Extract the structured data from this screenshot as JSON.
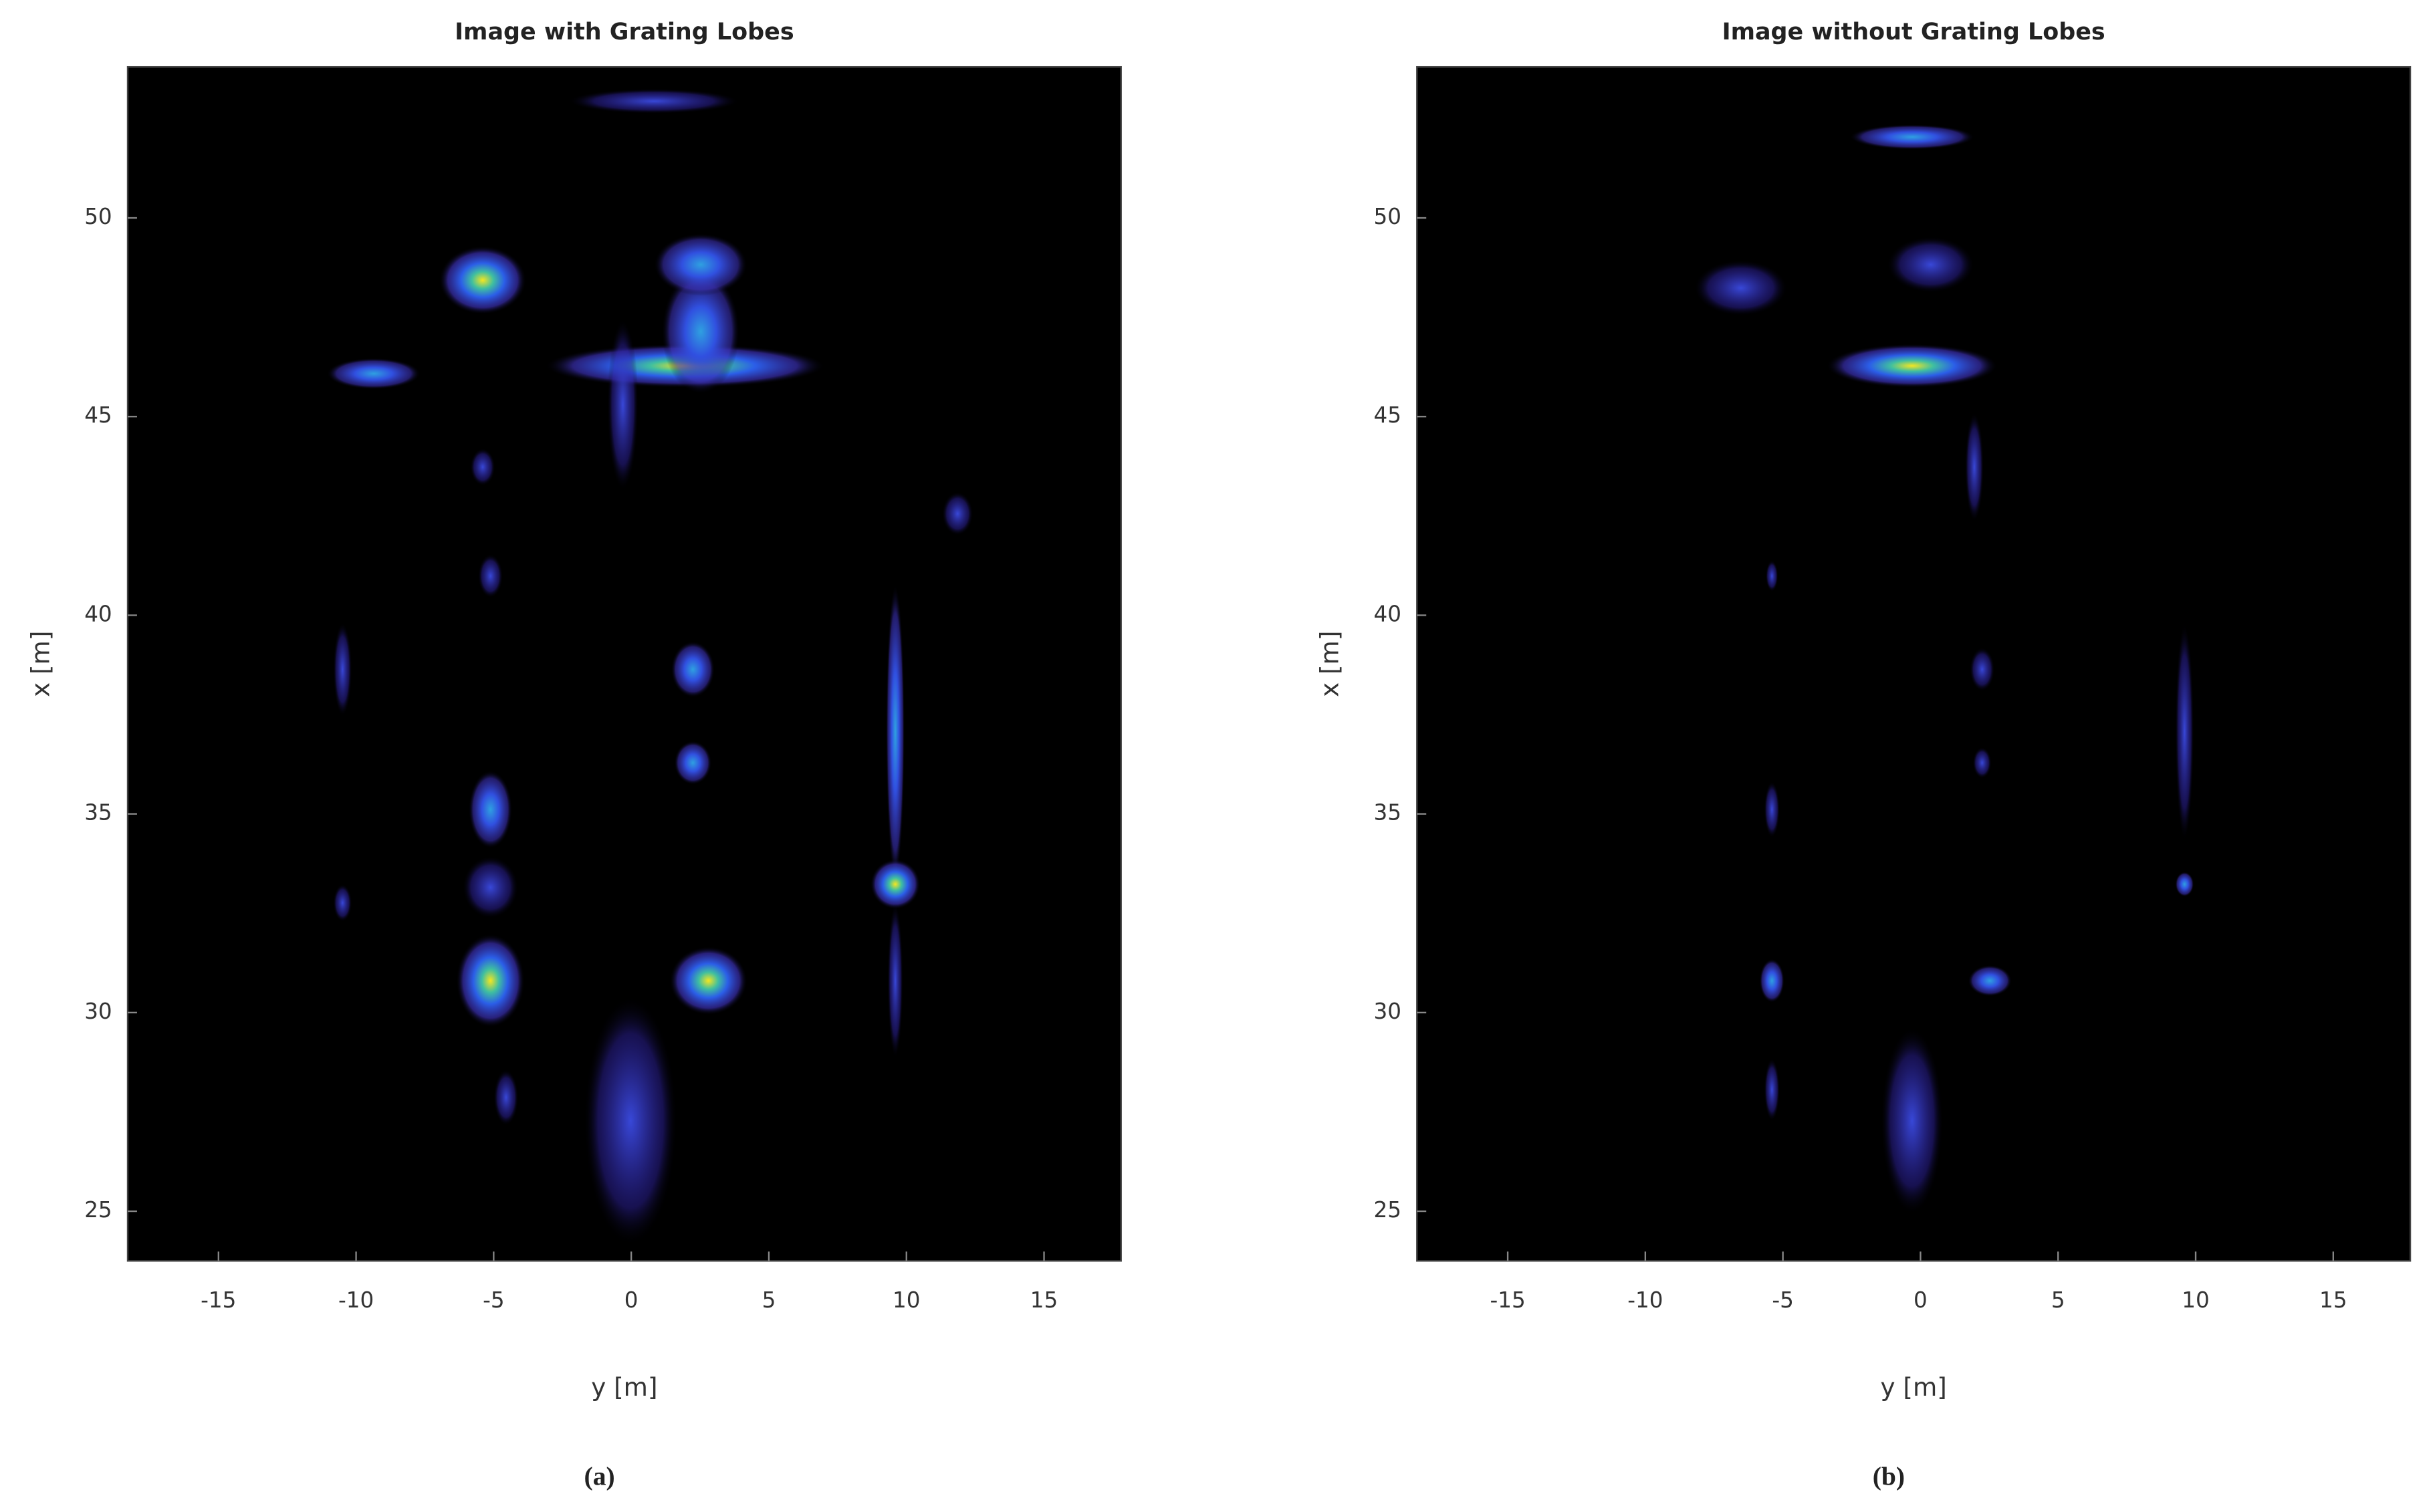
{
  "chart_data": [
    {
      "type": "image",
      "title": "Image with Grating Lobes",
      "xlabel": "y [m]",
      "ylabel": "x [m]",
      "caption": "(a)",
      "xlim": [
        -18.3,
        17.8
      ],
      "ylim": [
        23.75,
        53.8
      ],
      "xticks": [
        -15,
        -10,
        -5,
        0,
        5,
        10,
        15
      ],
      "yticks": [
        25,
        30,
        35,
        40,
        45,
        50
      ]
    },
    {
      "type": "image",
      "title": "Image without Grating Lobes",
      "xlabel": "y [m]",
      "ylabel": "x [m]",
      "caption": "(b)",
      "xlim": [
        -18.3,
        17.8
      ],
      "ylim": [
        23.75,
        53.8
      ],
      "xticks": [
        -15,
        -10,
        -5,
        0,
        5,
        10,
        15
      ],
      "yticks": [
        25,
        30,
        35,
        40,
        45,
        50
      ]
    }
  ]
}
